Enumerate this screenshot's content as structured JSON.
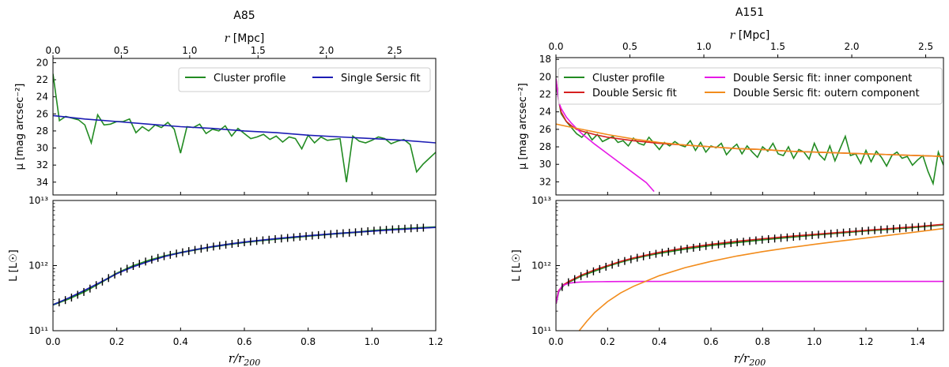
{
  "chart_data": [
    {
      "type": "line",
      "title": "A85",
      "top_axis": {
        "label": "r [Mpc]",
        "ticks": [
          "0.0",
          "0.5",
          "1.0",
          "1.5",
          "2.0",
          "2.5"
        ],
        "range": [
          0,
          2.8
        ]
      },
      "upper_panel": {
        "ylabel": "μ [mag arcsec⁻²]",
        "ylim": [
          35.5,
          19.5
        ],
        "yticks": [
          "20",
          "22",
          "24",
          "26",
          "28",
          "30",
          "32",
          "34"
        ],
        "legend": {
          "placement": "top-right",
          "entries": [
            "Cluster profile",
            "Single Sersic fit"
          ]
        },
        "series": [
          {
            "name": "Cluster profile",
            "color": "#228b22",
            "x": [
              0.0,
              0.02,
              0.04,
              0.06,
              0.08,
              0.1,
              0.12,
              0.14,
              0.16,
              0.18,
              0.2,
              0.22,
              0.24,
              0.26,
              0.28,
              0.3,
              0.32,
              0.34,
              0.36,
              0.38,
              0.4,
              0.42,
              0.44,
              0.46,
              0.48,
              0.5,
              0.52,
              0.54,
              0.56,
              0.58,
              0.6,
              0.62,
              0.64,
              0.66,
              0.68,
              0.7,
              0.72,
              0.74,
              0.76,
              0.78,
              0.8,
              0.82,
              0.84,
              0.86,
              0.88,
              0.9,
              0.92,
              0.94,
              0.96,
              0.98,
              1.0,
              1.02,
              1.04,
              1.06,
              1.08,
              1.1,
              1.12,
              1.14,
              1.16,
              1.18,
              1.2
            ],
            "values": [
              21.3,
              26.8,
              26.3,
              26.5,
              26.7,
              27.3,
              29.4,
              26.1,
              27.3,
              27.2,
              26.9,
              26.9,
              26.6,
              28.2,
              27.5,
              28.0,
              27.3,
              27.6,
              27.0,
              27.8,
              30.6,
              27.5,
              27.6,
              27.2,
              28.3,
              27.8,
              28.0,
              27.4,
              28.6,
              27.7,
              28.3,
              28.9,
              28.7,
              28.4,
              29.0,
              28.6,
              29.3,
              28.7,
              28.9,
              30.1,
              28.5,
              29.4,
              28.7,
              29.1,
              29.0,
              28.9,
              34.0,
              28.6,
              29.2,
              29.4,
              29.1,
              28.7,
              28.9,
              29.5,
              29.2,
              29.0,
              29.6,
              32.8,
              31.9,
              31.2,
              30.5
            ]
          },
          {
            "name": "Single Sersic fit",
            "color": "#1c1cb4",
            "x": [
              0.0,
              0.1,
              0.2,
              0.3,
              0.4,
              0.5,
              0.6,
              0.7,
              0.8,
              0.9,
              1.0,
              1.1,
              1.2
            ],
            "values": [
              26.2,
              26.6,
              26.9,
              27.2,
              27.5,
              27.7,
              28.0,
              28.2,
              28.5,
              28.7,
              28.9,
              29.1,
              29.4
            ]
          }
        ]
      },
      "lower_panel": {
        "xlabel": "r/r200",
        "ylabel": "L [L☉]",
        "xlim": [
          0,
          1.2
        ],
        "xticks": [
          "0.0",
          "0.2",
          "0.4",
          "0.6",
          "0.8",
          "1.0",
          "1.2"
        ],
        "ylim": [
          100000000000.0,
          10000000000000.0
        ],
        "yscale": "log",
        "yticks": [
          "10¹¹",
          "10¹²",
          "10¹³"
        ],
        "series": [
          {
            "name": "Cluster profile",
            "color": "#228b22",
            "x": [
              0.0,
              0.05,
              0.1,
              0.15,
              0.2,
              0.25,
              0.3,
              0.35,
              0.4,
              0.45,
              0.5,
              0.55,
              0.6,
              0.65,
              0.7,
              0.75,
              0.8,
              0.85,
              0.9,
              0.95,
              1.0,
              1.05,
              1.1,
              1.15,
              1.2
            ],
            "values": [
              250000000000.0,
              310000000000.0,
              400000000000.0,
              550000000000.0,
              760000000000.0,
              980000000000.0,
              1200000000000.0,
              1400000000000.0,
              1580000000000.0,
              1760000000000.0,
              1950000000000.0,
              2120000000000.0,
              2280000000000.0,
              2420000000000.0,
              2560000000000.0,
              2700000000000.0,
              2850000000000.0,
              2990000000000.0,
              3120000000000.0,
              3250000000000.0,
              3420000000000.0,
              3560000000000.0,
              3680000000000.0,
              3800000000000.0,
              3900000000000.0
            ]
          },
          {
            "name": "Single Sersic fit",
            "color": "#1c1cb4",
            "x": [
              0.0,
              0.05,
              0.1,
              0.15,
              0.2,
              0.25,
              0.3,
              0.35,
              0.4,
              0.45,
              0.5,
              0.55,
              0.6,
              0.65,
              0.7,
              0.75,
              0.8,
              0.85,
              0.9,
              0.95,
              1.0,
              1.05,
              1.1,
              1.15,
              1.2
            ],
            "values": [
              250000000000.0,
              320000000000.0,
              420000000000.0,
              560000000000.0,
              750000000000.0,
              950000000000.0,
              1160000000000.0,
              1380000000000.0,
              1580000000000.0,
              1770000000000.0,
              1960000000000.0,
              2130000000000.0,
              2300000000000.0,
              2450000000000.0,
              2600000000000.0,
              2740000000000.0,
              2870000000000.0,
              3000000000000.0,
              3130000000000.0,
              3260000000000.0,
              3380000000000.0,
              3500000000000.0,
              3620000000000.0,
              3740000000000.0,
              3850000000000.0
            ]
          }
        ]
      }
    },
    {
      "type": "line",
      "title": "A151",
      "top_axis": {
        "label": "r [Mpc]",
        "ticks": [
          "0.0",
          "0.5",
          "1.0",
          "1.5",
          "2.0",
          "2.5"
        ],
        "range": [
          0,
          2.62
        ]
      },
      "upper_panel": {
        "ylabel": "μ [mag arcsec⁻²]",
        "ylim": [
          33.5,
          17.8
        ],
        "yticks": [
          "18",
          "20",
          "22",
          "24",
          "26",
          "28",
          "30",
          "32"
        ],
        "legend": {
          "placement": "top",
          "entries": [
            "Cluster profile",
            "Double Sersic fit",
            "Double Sersic fit: inner component",
            "Double Sersic fit: outern component"
          ]
        },
        "series": [
          {
            "name": "Cluster profile",
            "color": "#228b22",
            "x": [
              0.0,
              0.02,
              0.04,
              0.06,
              0.08,
              0.1,
              0.12,
              0.14,
              0.16,
              0.18,
              0.2,
              0.22,
              0.24,
              0.26,
              0.28,
              0.3,
              0.32,
              0.34,
              0.36,
              0.38,
              0.4,
              0.42,
              0.44,
              0.46,
              0.48,
              0.5,
              0.52,
              0.54,
              0.56,
              0.58,
              0.6,
              0.62,
              0.64,
              0.66,
              0.68,
              0.7,
              0.72,
              0.74,
              0.76,
              0.78,
              0.8,
              0.82,
              0.84,
              0.86,
              0.88,
              0.9,
              0.92,
              0.94,
              0.96,
              0.98,
              1.0,
              1.02,
              1.04,
              1.06,
              1.08,
              1.1,
              1.12,
              1.14,
              1.16,
              1.18,
              1.2,
              1.22,
              1.24,
              1.26,
              1.28,
              1.3,
              1.32,
              1.34,
              1.36,
              1.38,
              1.4,
              1.42,
              1.44,
              1.46,
              1.48,
              1.5
            ],
            "values": [
              21.0,
              24.2,
              25.1,
              25.8,
              26.5,
              26.9,
              26.3,
              27.2,
              26.6,
              27.4,
              27.1,
              26.8,
              27.5,
              27.3,
              27.9,
              27.0,
              27.6,
              27.8,
              26.9,
              27.6,
              28.3,
              27.5,
              27.9,
              27.4,
              27.8,
              28.0,
              27.3,
              28.4,
              27.5,
              28.6,
              27.9,
              28.1,
              27.6,
              28.9,
              28.2,
              27.7,
              28.8,
              27.9,
              28.6,
              29.2,
              28.0,
              28.5,
              27.6,
              28.8,
              29.0,
              28.0,
              29.3,
              28.3,
              28.6,
              29.4,
              27.6,
              28.9,
              29.5,
              27.9,
              29.6,
              28.2,
              26.8,
              29.0,
              28.8,
              29.9,
              28.4,
              29.7,
              28.5,
              29.2,
              30.2,
              29.0,
              28.6,
              29.3,
              29.1,
              30.1,
              29.5,
              29.0,
              30.8,
              32.2,
              28.6,
              30.1
            ]
          },
          {
            "name": "Double Sersic fit",
            "color": "#d62020",
            "x": [
              0.0,
              0.01,
              0.02,
              0.04,
              0.06,
              0.08,
              0.1,
              0.15,
              0.2,
              0.3,
              0.4,
              0.5,
              0.6,
              0.7,
              0.8,
              0.9,
              1.0,
              1.1,
              1.2,
              1.3,
              1.4,
              1.5
            ],
            "values": [
              20.2,
              22.6,
              24.0,
              25.1,
              25.6,
              26.0,
              26.2,
              26.6,
              26.9,
              27.3,
              27.6,
              27.8,
              28.0,
              28.2,
              28.3,
              28.5,
              28.6,
              28.7,
              28.8,
              28.9,
              29.0,
              29.1
            ]
          },
          {
            "name": "Double Sersic fit: inner component",
            "color": "#e619e6",
            "x": [
              0.0,
              0.01,
              0.02,
              0.04,
              0.06,
              0.08,
              0.1,
              0.15,
              0.2,
              0.25,
              0.3,
              0.35,
              0.38
            ],
            "values": [
              20.2,
              22.8,
              23.6,
              24.6,
              25.3,
              25.9,
              26.5,
              27.7,
              28.8,
              29.9,
              31.0,
              32.1,
              33.1
            ]
          },
          {
            "name": "Double Sersic fit: outern component",
            "color": "#f28c1c",
            "x": [
              0.0,
              0.05,
              0.1,
              0.15,
              0.2,
              0.3,
              0.4,
              0.5,
              0.6,
              0.7,
              0.8,
              0.9,
              1.0,
              1.1,
              1.2,
              1.3,
              1.4,
              1.5
            ],
            "values": [
              25.4,
              25.7,
              26.0,
              26.3,
              26.6,
              27.1,
              27.5,
              27.8,
              28.0,
              28.2,
              28.3,
              28.5,
              28.6,
              28.7,
              28.8,
              28.9,
              29.0,
              29.1
            ]
          }
        ]
      },
      "lower_panel": {
        "xlabel": "r/r200",
        "ylabel": "L [L☉]",
        "xlim": [
          0,
          1.5
        ],
        "xticks": [
          "0.0",
          "0.2",
          "0.4",
          "0.6",
          "0.8",
          "1.0",
          "1.2",
          "1.4"
        ],
        "ylim": [
          100000000000.0,
          10000000000000.0
        ],
        "yscale": "log",
        "yticks": [
          "10¹¹",
          "10¹²",
          "10¹³"
        ],
        "series": [
          {
            "name": "Cluster profile",
            "color": "#228b22",
            "x": [
              0.0,
              0.01,
              0.03,
              0.05,
              0.1,
              0.15,
              0.2,
              0.25,
              0.3,
              0.35,
              0.4,
              0.5,
              0.6,
              0.7,
              0.8,
              0.9,
              1.0,
              1.1,
              1.2,
              1.3,
              1.4,
              1.5
            ],
            "values": [
              260000000000.0,
              400000000000.0,
              500000000000.0,
              560000000000.0,
              700000000000.0,
              830000000000.0,
              980000000000.0,
              1130000000000.0,
              1280000000000.0,
              1420000000000.0,
              1550000000000.0,
              1800000000000.0,
              2050000000000.0,
              2270000000000.0,
              2500000000000.0,
              2720000000000.0,
              2950000000000.0,
              3180000000000.0,
              3420000000000.0,
              3650000000000.0,
              3900000000000.0,
              4250000000000.0
            ]
          },
          {
            "name": "Double Sersic fit",
            "color": "#d62020",
            "x": [
              0.0,
              0.01,
              0.03,
              0.05,
              0.1,
              0.15,
              0.2,
              0.25,
              0.3,
              0.35,
              0.4,
              0.5,
              0.6,
              0.7,
              0.8,
              0.9,
              1.0,
              1.1,
              1.2,
              1.3,
              1.4,
              1.5
            ],
            "values": [
              260000000000.0,
              410000000000.0,
              510000000000.0,
              570000000000.0,
              720000000000.0,
              860000000000.0,
              1000000000000.0,
              1160000000000.0,
              1310000000000.0,
              1450000000000.0,
              1600000000000.0,
              1870000000000.0,
              2120000000000.0,
              2360000000000.0,
              2580000000000.0,
              2800000000000.0,
              3020000000000.0,
              3240000000000.0,
              3480000000000.0,
              3720000000000.0,
              3980000000000.0,
              4300000000000.0
            ]
          },
          {
            "name": "Double Sersic fit: inner component",
            "color": "#e619e6",
            "x": [
              0.0,
              0.01,
              0.02,
              0.03,
              0.05,
              0.07,
              0.1,
              0.15,
              0.2,
              0.3,
              0.5,
              1.0,
              1.5
            ],
            "values": [
              260000000000.0,
              400000000000.0,
              460000000000.0,
              500000000000.0,
              535000000000.0,
              550000000000.0,
              560000000000.0,
              565000000000.0,
              568000000000.0,
              570000000000.0,
              570000000000.0,
              570000000000.0,
              570000000000.0
            ]
          },
          {
            "name": "Double Sersic fit: outern component",
            "color": "#f28c1c",
            "x": [
              0.09,
              0.12,
              0.15,
              0.2,
              0.25,
              0.3,
              0.4,
              0.5,
              0.6,
              0.7,
              0.8,
              0.9,
              1.0,
              1.1,
              1.2,
              1.3,
              1.4,
              1.5
            ],
            "values": [
              100000000000.0,
              140000000000.0,
              190000000000.0,
              280000000000.0,
              380000000000.0,
              480000000000.0,
              700000000000.0,
              930000000000.0,
              1160000000000.0,
              1400000000000.0,
              1640000000000.0,
              1880000000000.0,
              2120000000000.0,
              2380000000000.0,
              2650000000000.0,
              2950000000000.0,
              3300000000000.0,
              3700000000000.0
            ]
          }
        ]
      }
    }
  ]
}
